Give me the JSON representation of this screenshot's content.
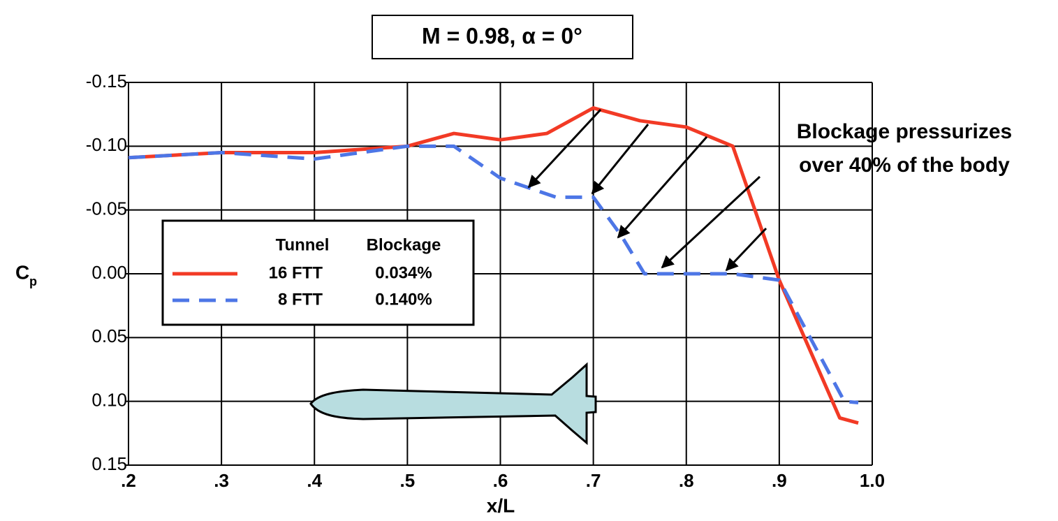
{
  "chart_data": {
    "type": "line",
    "title": "M = 0.98, α = 0°",
    "x_label": "x/L",
    "y_label": "C",
    "y_label_subscript": "p",
    "annotation": [
      "Blockage pressurizes",
      "over 40% of the body"
    ],
    "legend_headers": [
      "Tunnel",
      "Blockage"
    ],
    "xlim": [
      0.2,
      1.0
    ],
    "ylim": [
      -0.15,
      0.15
    ],
    "xticks": [
      {
        "value": 0.2,
        "label": ".2"
      },
      {
        "value": 0.3,
        "label": ".3"
      },
      {
        "value": 0.4,
        "label": ".4"
      },
      {
        "value": 0.5,
        "label": ".5"
      },
      {
        "value": 0.6,
        "label": ".6"
      },
      {
        "value": 0.7,
        "label": ".7"
      },
      {
        "value": 0.8,
        "label": ".8"
      },
      {
        "value": 0.9,
        "label": ".9"
      },
      {
        "value": 1.0,
        "label": "1.0"
      }
    ],
    "yticks": [
      {
        "value": -0.15,
        "label": "-0.15"
      },
      {
        "value": -0.1,
        "label": "-0.10"
      },
      {
        "value": -0.05,
        "label": "-0.05"
      },
      {
        "value": 0,
        "label": "0.00"
      },
      {
        "value": 0.05,
        "label": "0.05"
      },
      {
        "value": 0.1,
        "label": "0.10"
      },
      {
        "value": 0.15,
        "label": "0.15"
      }
    ],
    "grid": true,
    "series": [
      {
        "name": "16 FTT",
        "blockage": "0.034%",
        "color": "#f23a25",
        "dashed": false,
        "x": [
          0.2,
          0.3,
          0.4,
          0.5,
          0.55,
          0.6,
          0.65,
          0.7,
          0.75,
          0.8,
          0.85,
          0.9,
          0.965,
          0.985
        ],
        "values": [
          -0.091,
          -0.095,
          -0.095,
          -0.1,
          -0.11,
          -0.105,
          -0.11,
          -0.13,
          -0.12,
          -0.115,
          -0.1,
          0.005,
          0.113,
          0.117
        ]
      },
      {
        "name": "8 FTT",
        "blockage": "0.140%",
        "color": "#4d76e6",
        "dashed": true,
        "x": [
          0.2,
          0.3,
          0.4,
          0.5,
          0.55,
          0.6,
          0.66,
          0.7,
          0.73,
          0.755,
          0.8,
          0.85,
          0.9,
          0.97,
          0.985
        ],
        "values": [
          -0.091,
          -0.095,
          -0.09,
          -0.1,
          -0.1,
          -0.075,
          -0.06,
          -0.06,
          -0.03,
          0,
          0,
          0,
          0.005,
          0.1,
          0.101
        ]
      }
    ]
  }
}
